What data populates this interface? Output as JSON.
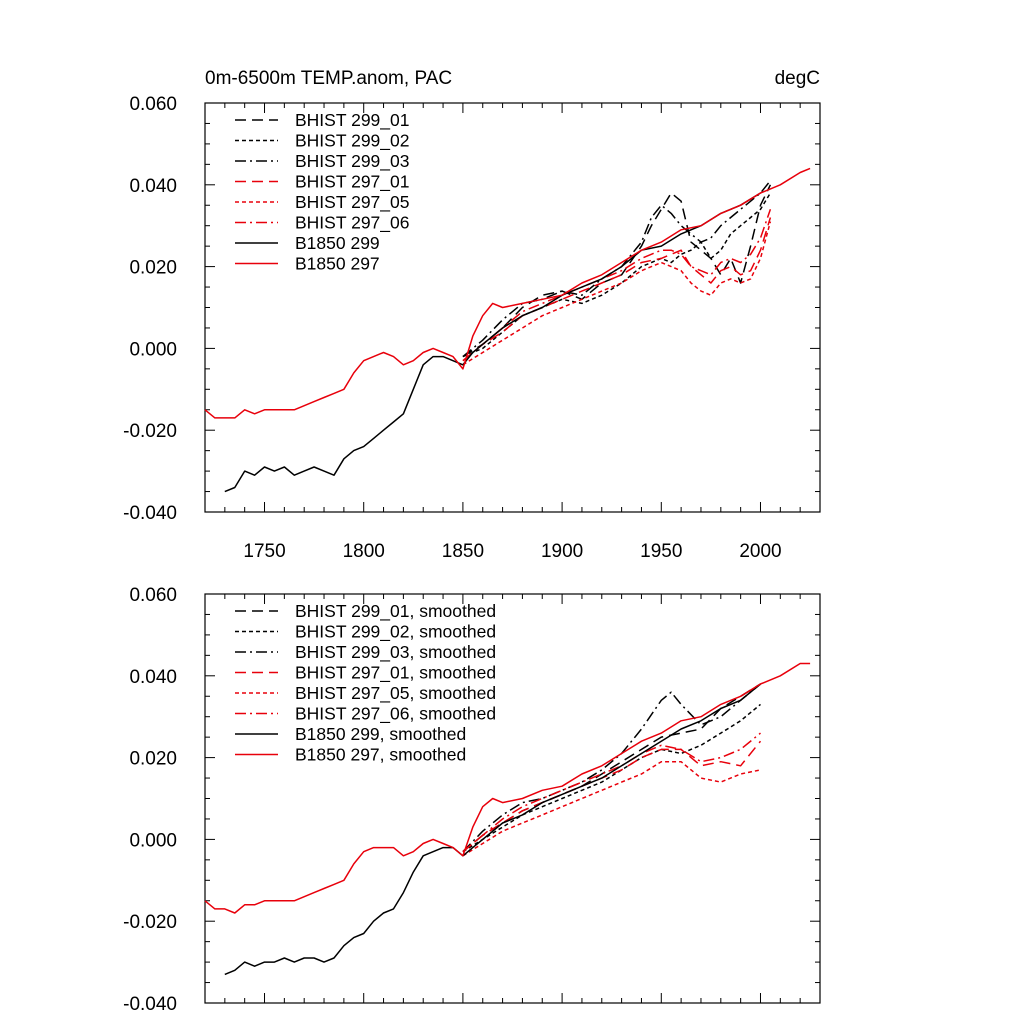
{
  "figure": {
    "title_left": "0m-6500m TEMP.anom, PAC",
    "title_right": "degC"
  },
  "colors": {
    "black": "#000000",
    "red": "#e8000b"
  },
  "chart_data": [
    {
      "type": "line",
      "name": "annual",
      "xlim": [
        1720,
        2030
      ],
      "ylim": [
        -0.04,
        0.06
      ],
      "xticks": [
        1750,
        1800,
        1850,
        1900,
        1950,
        2000
      ],
      "xtick_labels": [
        "1750",
        "1800",
        "1850",
        "1900",
        "1950",
        "2000"
      ],
      "yticks": [
        -0.04,
        -0.02,
        0.0,
        0.02,
        0.04,
        0.06
      ],
      "ytick_labels": [
        "-0.040",
        "-0.020",
        "0.000",
        "0.020",
        "0.040",
        "0.060"
      ],
      "show_xtick_labels": true,
      "legend_position": "top-left",
      "series": [
        {
          "name": "BHIST 299_01",
          "color": "black",
          "dash": "long-dash",
          "x": [
            1850,
            1860,
            1870,
            1880,
            1890,
            1900,
            1910,
            1920,
            1930,
            1940,
            1945,
            1950,
            1955,
            1960,
            1965,
            1970,
            1975,
            1980,
            1985,
            1990,
            1995,
            2000,
            2005
          ],
          "y": [
            -0.002,
            0.001,
            0.005,
            0.01,
            0.013,
            0.014,
            0.012,
            0.016,
            0.018,
            0.025,
            0.03,
            0.034,
            0.038,
            0.036,
            0.026,
            0.024,
            0.022,
            0.018,
            0.022,
            0.016,
            0.025,
            0.035,
            0.04
          ]
        },
        {
          "name": "BHIST 299_02",
          "color": "black",
          "dash": "short-dash",
          "x": [
            1850,
            1860,
            1870,
            1880,
            1890,
            1900,
            1910,
            1920,
            1930,
            1940,
            1950,
            1955,
            1960,
            1965,
            1970,
            1975,
            1980,
            1985,
            1990,
            1995,
            2000,
            2005
          ],
          "y": [
            -0.002,
            0.0,
            0.004,
            0.008,
            0.01,
            0.012,
            0.011,
            0.013,
            0.016,
            0.02,
            0.022,
            0.021,
            0.023,
            0.024,
            0.026,
            0.022,
            0.024,
            0.028,
            0.03,
            0.032,
            0.034,
            0.038
          ]
        },
        {
          "name": "BHIST 299_03",
          "color": "black",
          "dash": "dash-dot",
          "x": [
            1850,
            1860,
            1870,
            1880,
            1890,
            1900,
            1910,
            1920,
            1930,
            1940,
            1945,
            1950,
            1955,
            1960,
            1965,
            1970,
            1975,
            1980,
            1985,
            1990,
            1995,
            2000,
            2005
          ],
          "y": [
            -0.002,
            0.002,
            0.007,
            0.011,
            0.012,
            0.014,
            0.013,
            0.017,
            0.02,
            0.026,
            0.032,
            0.035,
            0.033,
            0.03,
            0.028,
            0.026,
            0.027,
            0.03,
            0.032,
            0.034,
            0.036,
            0.038,
            0.041
          ]
        },
        {
          "name": "BHIST 297_01",
          "color": "red",
          "dash": "long-dash",
          "x": [
            1850,
            1860,
            1870,
            1880,
            1890,
            1900,
            1910,
            1920,
            1930,
            1940,
            1950,
            1955,
            1960,
            1965,
            1970,
            1975,
            1980,
            1985,
            1990,
            1995,
            2000,
            2005
          ],
          "y": [
            -0.003,
            0.001,
            0.004,
            0.008,
            0.01,
            0.012,
            0.014,
            0.016,
            0.018,
            0.021,
            0.022,
            0.023,
            0.024,
            0.02,
            0.018,
            0.016,
            0.019,
            0.02,
            0.018,
            0.019,
            0.024,
            0.032
          ]
        },
        {
          "name": "BHIST 297_05",
          "color": "red",
          "dash": "short-dash",
          "x": [
            1850,
            1860,
            1870,
            1880,
            1890,
            1900,
            1910,
            1920,
            1930,
            1940,
            1950,
            1955,
            1960,
            1965,
            1970,
            1975,
            1980,
            1985,
            1990,
            1995,
            2000,
            2005
          ],
          "y": [
            -0.004,
            -0.001,
            0.002,
            0.005,
            0.008,
            0.01,
            0.012,
            0.014,
            0.016,
            0.019,
            0.021,
            0.02,
            0.019,
            0.016,
            0.014,
            0.013,
            0.016,
            0.017,
            0.016,
            0.017,
            0.022,
            0.031
          ]
        },
        {
          "name": "BHIST 297_06",
          "color": "red",
          "dash": "dash-dot",
          "x": [
            1850,
            1860,
            1870,
            1880,
            1890,
            1900,
            1910,
            1920,
            1930,
            1940,
            1950,
            1955,
            1960,
            1965,
            1970,
            1975,
            1980,
            1985,
            1990,
            1995,
            2000,
            2005
          ],
          "y": [
            -0.003,
            0.001,
            0.005,
            0.009,
            0.011,
            0.013,
            0.015,
            0.017,
            0.019,
            0.022,
            0.024,
            0.024,
            0.023,
            0.02,
            0.019,
            0.018,
            0.021,
            0.022,
            0.021,
            0.023,
            0.027,
            0.034
          ]
        },
        {
          "name": "B1850 299",
          "color": "black",
          "dash": "solid",
          "x": [
            1730,
            1735,
            1740,
            1745,
            1750,
            1755,
            1760,
            1765,
            1770,
            1775,
            1780,
            1785,
            1790,
            1795,
            1800,
            1805,
            1810,
            1815,
            1820,
            1825,
            1830,
            1835,
            1840,
            1845,
            1850,
            1855,
            1860,
            1870,
            1880,
            1890,
            1900,
            1910,
            1920,
            1930,
            1940,
            1950,
            1960,
            1970,
            1980,
            1990,
            2000
          ],
          "y": [
            -0.035,
            -0.034,
            -0.03,
            -0.031,
            -0.029,
            -0.03,
            -0.029,
            -0.031,
            -0.03,
            -0.029,
            -0.03,
            -0.031,
            -0.027,
            -0.025,
            -0.024,
            -0.022,
            -0.02,
            -0.018,
            -0.016,
            -0.01,
            -0.004,
            -0.002,
            -0.002,
            -0.003,
            -0.004,
            -0.001,
            0.001,
            0.005,
            0.008,
            0.01,
            0.013,
            0.015,
            0.017,
            0.02,
            0.024,
            0.025,
            0.028,
            0.03,
            0.033,
            0.035,
            0.038
          ]
        },
        {
          "name": "B1850 297",
          "color": "red",
          "dash": "solid",
          "x": [
            1720,
            1725,
            1730,
            1735,
            1740,
            1745,
            1750,
            1755,
            1760,
            1765,
            1770,
            1775,
            1780,
            1785,
            1790,
            1795,
            1800,
            1805,
            1810,
            1815,
            1820,
            1825,
            1830,
            1835,
            1840,
            1845,
            1850,
            1855,
            1860,
            1865,
            1870,
            1880,
            1890,
            1900,
            1910,
            1920,
            1930,
            1940,
            1950,
            1960,
            1970,
            1980,
            1990,
            2000,
            2010,
            2020,
            2025
          ],
          "y": [
            -0.015,
            -0.017,
            -0.017,
            -0.017,
            -0.015,
            -0.016,
            -0.015,
            -0.015,
            -0.015,
            -0.015,
            -0.014,
            -0.013,
            -0.012,
            -0.011,
            -0.01,
            -0.006,
            -0.003,
            -0.002,
            -0.001,
            -0.002,
            -0.004,
            -0.003,
            -0.001,
            0.0,
            -0.001,
            -0.002,
            -0.005,
            0.003,
            0.008,
            0.011,
            0.01,
            0.011,
            0.012,
            0.013,
            0.016,
            0.018,
            0.021,
            0.024,
            0.026,
            0.029,
            0.03,
            0.033,
            0.035,
            0.038,
            0.04,
            0.043,
            0.044
          ]
        }
      ]
    },
    {
      "type": "line",
      "name": "smoothed",
      "xlim": [
        1720,
        2030
      ],
      "ylim": [
        -0.04,
        0.06
      ],
      "xticks": [
        1750,
        1800,
        1850,
        1900,
        1950,
        2000
      ],
      "xtick_labels": [],
      "yticks": [
        -0.04,
        -0.02,
        0.0,
        0.02,
        0.04,
        0.06
      ],
      "ytick_labels": [
        "-0.040",
        "-0.020",
        "0.000",
        "0.020",
        "0.040",
        "0.060"
      ],
      "show_xtick_labels": false,
      "legend_position": "top-left",
      "series": [
        {
          "name": "BHIST 299_01, smoothed",
          "color": "black",
          "dash": "long-dash",
          "x": [
            1850,
            1860,
            1870,
            1880,
            1890,
            1900,
            1910,
            1920,
            1930,
            1940,
            1950,
            1960,
            1970,
            1980,
            1990,
            2000
          ],
          "y": [
            -0.003,
            0.001,
            0.004,
            0.007,
            0.009,
            0.011,
            0.013,
            0.016,
            0.019,
            0.022,
            0.025,
            0.026,
            0.027,
            0.032,
            0.035,
            0.038
          ]
        },
        {
          "name": "BHIST 299_02, smoothed",
          "color": "black",
          "dash": "short-dash",
          "x": [
            1850,
            1860,
            1870,
            1880,
            1890,
            1900,
            1910,
            1920,
            1930,
            1940,
            1950,
            1960,
            1970,
            1980,
            1990,
            2000
          ],
          "y": [
            -0.003,
            0.0,
            0.003,
            0.006,
            0.008,
            0.01,
            0.012,
            0.014,
            0.017,
            0.02,
            0.022,
            0.021,
            0.023,
            0.026,
            0.029,
            0.033
          ]
        },
        {
          "name": "BHIST 299_03, smoothed",
          "color": "black",
          "dash": "dash-dot",
          "x": [
            1850,
            1860,
            1870,
            1880,
            1890,
            1900,
            1910,
            1920,
            1930,
            1940,
            1950,
            1955,
            1960,
            1970,
            1980,
            1990,
            2000
          ],
          "y": [
            -0.003,
            0.002,
            0.006,
            0.009,
            0.01,
            0.012,
            0.014,
            0.017,
            0.021,
            0.027,
            0.034,
            0.036,
            0.033,
            0.028,
            0.03,
            0.034,
            0.038
          ]
        },
        {
          "name": "BHIST 297_01, smoothed",
          "color": "red",
          "dash": "long-dash",
          "x": [
            1850,
            1860,
            1870,
            1880,
            1890,
            1900,
            1910,
            1920,
            1930,
            1940,
            1950,
            1960,
            1970,
            1980,
            1990,
            2000
          ],
          "y": [
            -0.003,
            0.001,
            0.004,
            0.007,
            0.009,
            0.011,
            0.013,
            0.015,
            0.017,
            0.02,
            0.022,
            0.022,
            0.018,
            0.019,
            0.018,
            0.024
          ]
        },
        {
          "name": "BHIST 297_05, smoothed",
          "color": "red",
          "dash": "short-dash",
          "x": [
            1850,
            1860,
            1870,
            1880,
            1890,
            1900,
            1910,
            1920,
            1930,
            1940,
            1950,
            1960,
            1970,
            1980,
            1990,
            2000
          ],
          "y": [
            -0.004,
            -0.001,
            0.002,
            0.004,
            0.006,
            0.008,
            0.01,
            0.012,
            0.014,
            0.016,
            0.019,
            0.019,
            0.015,
            0.014,
            0.016,
            0.017
          ]
        },
        {
          "name": "BHIST 297_06, smoothed",
          "color": "red",
          "dash": "dash-dot",
          "x": [
            1850,
            1860,
            1870,
            1880,
            1890,
            1900,
            1910,
            1920,
            1930,
            1940,
            1950,
            1960,
            1970,
            1980,
            1990,
            2000
          ],
          "y": [
            -0.003,
            0.001,
            0.005,
            0.008,
            0.01,
            0.012,
            0.014,
            0.016,
            0.018,
            0.021,
            0.023,
            0.022,
            0.019,
            0.02,
            0.022,
            0.026
          ]
        },
        {
          "name": "B1850 299, smoothed",
          "color": "black",
          "dash": "solid",
          "x": [
            1730,
            1735,
            1740,
            1745,
            1750,
            1755,
            1760,
            1765,
            1770,
            1775,
            1780,
            1785,
            1790,
            1795,
            1800,
            1805,
            1810,
            1815,
            1820,
            1825,
            1830,
            1835,
            1840,
            1845,
            1850,
            1855,
            1860,
            1870,
            1880,
            1890,
            1900,
            1910,
            1920,
            1930,
            1940,
            1950,
            1960,
            1970,
            1980,
            1990,
            2000
          ],
          "y": [
            -0.033,
            -0.032,
            -0.03,
            -0.031,
            -0.03,
            -0.03,
            -0.029,
            -0.03,
            -0.029,
            -0.029,
            -0.03,
            -0.029,
            -0.026,
            -0.024,
            -0.023,
            -0.02,
            -0.018,
            -0.017,
            -0.013,
            -0.008,
            -0.004,
            -0.003,
            -0.002,
            -0.002,
            -0.004,
            -0.002,
            0.0,
            0.004,
            0.006,
            0.009,
            0.011,
            0.013,
            0.015,
            0.018,
            0.021,
            0.024,
            0.027,
            0.029,
            0.032,
            0.034,
            0.038
          ]
        },
        {
          "name": "B1850 297, smoothed",
          "color": "red",
          "dash": "solid",
          "x": [
            1720,
            1725,
            1730,
            1735,
            1740,
            1745,
            1750,
            1755,
            1760,
            1765,
            1770,
            1775,
            1780,
            1785,
            1790,
            1795,
            1800,
            1805,
            1810,
            1815,
            1820,
            1825,
            1830,
            1835,
            1840,
            1845,
            1850,
            1855,
            1860,
            1865,
            1870,
            1880,
            1890,
            1900,
            1910,
            1920,
            1930,
            1940,
            1950,
            1960,
            1970,
            1980,
            1990,
            2000,
            2010,
            2020,
            2025
          ],
          "y": [
            -0.015,
            -0.017,
            -0.017,
            -0.018,
            -0.016,
            -0.016,
            -0.015,
            -0.015,
            -0.015,
            -0.015,
            -0.014,
            -0.013,
            -0.012,
            -0.011,
            -0.01,
            -0.006,
            -0.003,
            -0.002,
            -0.002,
            -0.002,
            -0.004,
            -0.003,
            -0.001,
            0.0,
            -0.001,
            -0.002,
            -0.004,
            0.003,
            0.008,
            0.01,
            0.009,
            0.01,
            0.012,
            0.013,
            0.016,
            0.018,
            0.021,
            0.024,
            0.026,
            0.029,
            0.03,
            0.033,
            0.035,
            0.038,
            0.04,
            0.043,
            0.043
          ]
        }
      ]
    }
  ]
}
